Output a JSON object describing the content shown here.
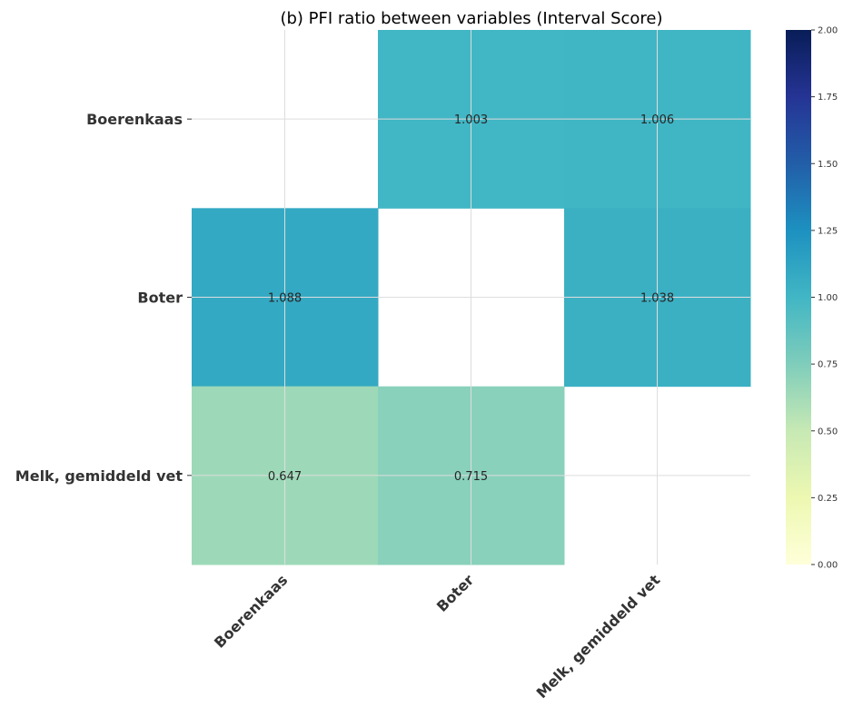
{
  "chart_data": {
    "type": "heatmap",
    "title": "(b) PFI ratio between variables (Interval Score)",
    "rows": [
      "Boerenkaas",
      "Boter",
      "Melk, gemiddeld vet"
    ],
    "columns": [
      "Boerenkaas",
      "Boter",
      "Melk, gemiddeld vet"
    ],
    "values": [
      [
        null,
        1.003,
        1.006
      ],
      [
        1.088,
        null,
        1.038
      ],
      [
        0.647,
        0.715,
        null
      ]
    ],
    "value_labels": [
      [
        null,
        "1.003",
        "1.006"
      ],
      [
        "1.088",
        null,
        "1.038"
      ],
      [
        "0.647",
        "0.715",
        null
      ]
    ],
    "colorbar": {
      "range": [
        0,
        2
      ],
      "ticks": [
        "0.00",
        "0.25",
        "0.50",
        "0.75",
        "1.00",
        "1.25",
        "1.50",
        "1.75",
        "2.00"
      ],
      "colormap": "YlGnBu"
    },
    "grid": true,
    "xtick_rotation": "45deg",
    "colors": {
      "low_label": "#262626",
      "high_label": "#ffffff",
      "grid": "#dddddd"
    }
  }
}
